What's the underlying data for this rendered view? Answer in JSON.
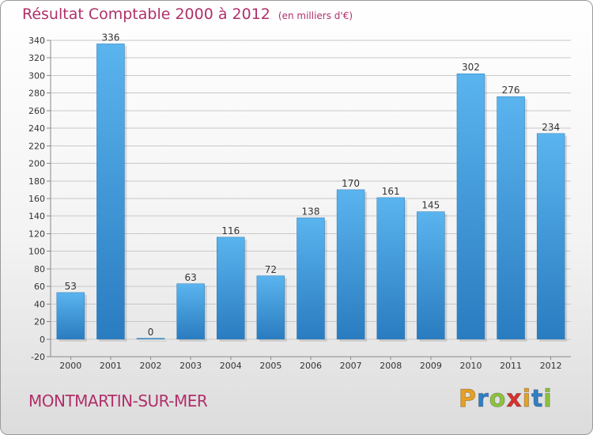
{
  "header": {
    "title": "Résultat Comptable 2000 à 2012",
    "subtitle": "(en milliers d'€)"
  },
  "footer": {
    "commune": "MONTMARTIN-SUR-MER",
    "logo_text": "Proxiti"
  },
  "colors": {
    "bar": "#3a8fd6",
    "title": "#b0306a",
    "logo_letters": [
      "#e8a020",
      "#2f7fc8",
      "#8cc43c",
      "#d8322e",
      "#e8a020",
      "#2f7fc8",
      "#8cc43c"
    ]
  },
  "chart_data": {
    "type": "bar",
    "categories": [
      "2000",
      "2001",
      "2002",
      "2003",
      "2004",
      "2005",
      "2006",
      "2007",
      "2008",
      "2009",
      "2010",
      "2011",
      "2012"
    ],
    "values": [
      53,
      336,
      0,
      63,
      116,
      72,
      138,
      170,
      161,
      145,
      302,
      276,
      234
    ],
    "title": "Résultat Comptable 2000 à 2012",
    "subtitle": "(en milliers d'€)",
    "xlabel": "",
    "ylabel": "",
    "ylim": [
      -20,
      340
    ],
    "yticks": [
      -20,
      0,
      20,
      40,
      60,
      80,
      100,
      120,
      140,
      160,
      180,
      200,
      220,
      240,
      260,
      280,
      300,
      320,
      340
    ],
    "grid": true,
    "legend": "none"
  }
}
